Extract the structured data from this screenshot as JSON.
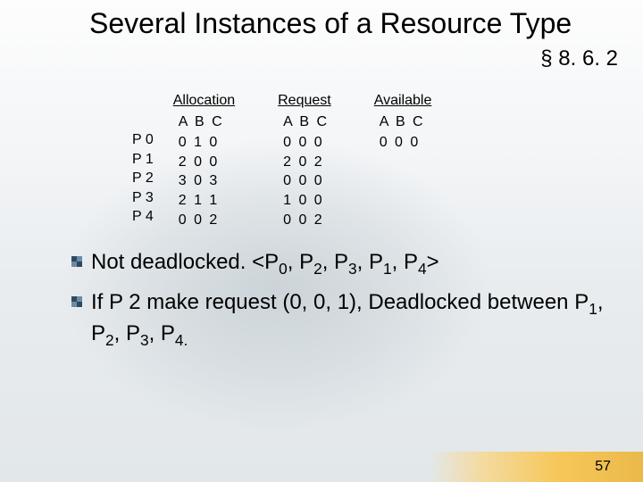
{
  "title": "Several Instances of a Resource Type",
  "section": "§ 8. 6. 2",
  "tables": {
    "row_labels": [
      "P 0",
      "P 1",
      "P 2",
      "P 3",
      "P 4"
    ],
    "cols_header": "A B C",
    "allocation": {
      "label": "Allocation",
      "rows": [
        "0  1  0",
        "2  0  0",
        "3  0  3",
        "2  1  1",
        "0  0  2"
      ]
    },
    "request": {
      "label": "Request",
      "rows": [
        "0  0  0",
        "2  0  2",
        "0  0  0",
        "1  0  0",
        "0  0  2"
      ]
    },
    "available": {
      "label": "Available",
      "rows": [
        "0  0  0"
      ]
    }
  },
  "bullets": {
    "b1_a": "Not deadlocked. <P",
    "b1_b": ", P",
    "b1_c": ">",
    "b2_a": "If P 2 make request (0, 0, 1), Deadlocked between P",
    "sub0": "0",
    "sub1": "1",
    "sub2": "2",
    "sub3": "3",
    "sub4": "4",
    "sub4dot": "4."
  },
  "page": "57"
}
